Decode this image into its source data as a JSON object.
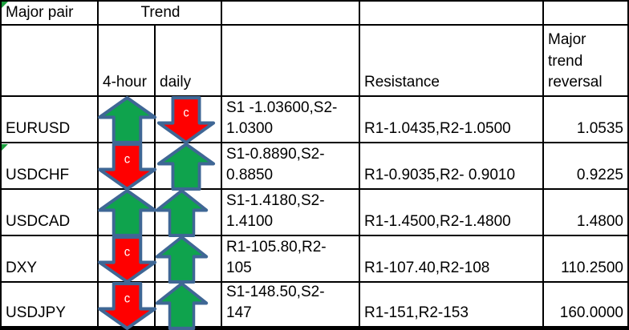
{
  "header": {
    "major_pair": "Major pair",
    "trend": "Trend",
    "col_4h": "4-hour",
    "col_daily": "daily",
    "resistance": "Resistance",
    "major_trend_reversal": "Major trend reversal"
  },
  "rows": [
    {
      "pair": "EURUSD",
      "trend_4h": {
        "dir": "up",
        "label": ""
      },
      "trend_daily": {
        "dir": "down",
        "label": "c"
      },
      "support": "S1 -1.03600,S2-\n1.0300",
      "resistance": "R1-1.0435,R2-1.0500",
      "reversal": "1.0535"
    },
    {
      "pair": "USDCHF",
      "trend_4h": {
        "dir": "down",
        "label": "c"
      },
      "trend_daily": {
        "dir": "up",
        "label": ""
      },
      "support": "S1-0.8890,S2-\n0.8850",
      "resistance": "R1-0.9035,R2- 0.9010",
      "reversal": "0.9225"
    },
    {
      "pair": "USDCAD",
      "trend_4h": {
        "dir": "up",
        "label": ""
      },
      "trend_daily": {
        "dir": "up",
        "label": ""
      },
      "support": "S1-1.4180,S2-\n1.4100",
      "resistance": "R1-1.4500,R2-1.4800",
      "reversal": "1.4800"
    },
    {
      "pair": "DXY",
      "trend_4h": {
        "dir": "down",
        "label": "c"
      },
      "trend_daily": {
        "dir": "up",
        "label": ""
      },
      "support": "R1-105.80,R2-\n105",
      "resistance": "R1-107.40,R2-108",
      "reversal": "110.2500"
    },
    {
      "pair": "USDJPY",
      "trend_4h": {
        "dir": "down",
        "label": "c"
      },
      "trend_daily": {
        "dir": "up",
        "label": ""
      },
      "support": "S1-148.50,S2-\n147",
      "resistance": "R1-151,R2-153",
      "reversal": "160.0000"
    }
  ],
  "icons": {
    "trend_up": "up-arrow-icon",
    "trend_down": "down-arrow-icon",
    "corner_flag": "green-corner-error-indicator"
  },
  "colors": {
    "arrow_up_fill": "#0fa34d",
    "arrow_down_fill": "#ff0000",
    "arrow_outline": "#3f6795",
    "arrow_label": "#ffffff",
    "grid_line": "#000000",
    "error_indicator": "#1d9f3e",
    "cell_background": "#ffffff"
  }
}
